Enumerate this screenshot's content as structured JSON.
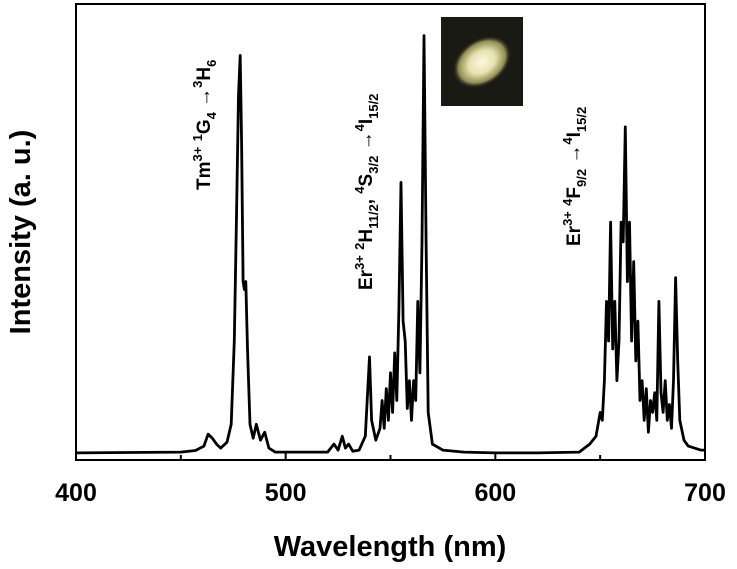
{
  "chart_data": {
    "type": "line",
    "title": "",
    "xlabel": "Wavelength (nm)",
    "ylabel": "Intensity (a. u.)",
    "xlim": [
      400,
      700
    ],
    "ylim": [
      0,
      1.15
    ],
    "grid": false,
    "x_ticks": [
      400,
      500,
      600,
      700
    ],
    "y_ticks": [],
    "series": [
      {
        "values": [
          [
            400,
            0.018
          ],
          [
            450,
            0.02
          ],
          [
            457,
            0.024
          ],
          [
            461,
            0.035
          ],
          [
            463,
            0.065
          ],
          [
            465,
            0.055
          ],
          [
            467,
            0.04
          ],
          [
            469,
            0.03
          ],
          [
            472,
            0.045
          ],
          [
            474,
            0.09
          ],
          [
            475.5,
            0.3
          ],
          [
            476.5,
            0.6
          ],
          [
            477.5,
            0.92
          ],
          [
            478.3,
            1.02
          ],
          [
            479,
            0.8
          ],
          [
            479.7,
            0.45
          ],
          [
            480.3,
            0.43
          ],
          [
            481,
            0.45
          ],
          [
            481.8,
            0.28
          ],
          [
            483,
            0.09
          ],
          [
            484.5,
            0.055
          ],
          [
            486,
            0.09
          ],
          [
            488,
            0.05
          ],
          [
            490,
            0.07
          ],
          [
            492,
            0.03
          ],
          [
            495,
            0.02
          ],
          [
            520,
            0.02
          ],
          [
            523,
            0.04
          ],
          [
            525,
            0.025
          ],
          [
            527,
            0.06
          ],
          [
            528.5,
            0.03
          ],
          [
            530,
            0.04
          ],
          [
            532,
            0.022
          ],
          [
            535,
            0.025
          ],
          [
            538,
            0.06
          ],
          [
            540,
            0.26
          ],
          [
            541,
            0.1
          ],
          [
            543,
            0.05
          ],
          [
            545,
            0.08
          ],
          [
            546,
            0.15
          ],
          [
            547,
            0.08
          ],
          [
            548,
            0.18
          ],
          [
            549,
            0.1
          ],
          [
            550,
            0.22
          ],
          [
            551,
            0.12
          ],
          [
            552,
            0.27
          ],
          [
            553,
            0.15
          ],
          [
            554,
            0.38
          ],
          [
            555,
            0.7
          ],
          [
            556,
            0.35
          ],
          [
            557,
            0.3
          ],
          [
            558,
            0.13
          ],
          [
            559,
            0.2
          ],
          [
            560,
            0.1
          ],
          [
            561,
            0.2
          ],
          [
            562,
            0.15
          ],
          [
            563,
            0.4
          ],
          [
            564,
            0.22
          ],
          [
            565,
            0.55
          ],
          [
            566,
            1.07
          ],
          [
            567,
            0.55
          ],
          [
            568,
            0.12
          ],
          [
            570,
            0.04
          ],
          [
            575,
            0.025
          ],
          [
            585,
            0.02
          ],
          [
            600,
            0.018
          ],
          [
            620,
            0.018
          ],
          [
            640,
            0.02
          ],
          [
            645,
            0.04
          ],
          [
            648,
            0.06
          ],
          [
            650,
            0.12
          ],
          [
            651,
            0.1
          ],
          [
            652,
            0.2
          ],
          [
            653,
            0.4
          ],
          [
            654,
            0.3
          ],
          [
            655,
            0.6
          ],
          [
            656,
            0.28
          ],
          [
            657,
            0.4
          ],
          [
            658,
            0.2
          ],
          [
            659,
            0.3
          ],
          [
            660,
            0.6
          ],
          [
            661,
            0.55
          ],
          [
            662,
            0.84
          ],
          [
            663,
            0.45
          ],
          [
            664,
            0.6
          ],
          [
            665,
            0.3
          ],
          [
            666,
            0.5
          ],
          [
            667,
            0.25
          ],
          [
            668,
            0.35
          ],
          [
            669,
            0.15
          ],
          [
            670,
            0.2
          ],
          [
            671,
            0.1
          ],
          [
            672,
            0.18
          ],
          [
            673,
            0.07
          ],
          [
            674,
            0.15
          ],
          [
            675,
            0.12
          ],
          [
            676,
            0.17
          ],
          [
            677,
            0.1
          ],
          [
            678,
            0.4
          ],
          [
            679,
            0.17
          ],
          [
            680,
            0.12
          ],
          [
            681,
            0.2
          ],
          [
            682,
            0.1
          ],
          [
            683,
            0.14
          ],
          [
            684,
            0.08
          ],
          [
            685,
            0.2
          ],
          [
            686,
            0.46
          ],
          [
            687,
            0.25
          ],
          [
            688,
            0.1
          ],
          [
            690,
            0.05
          ],
          [
            692,
            0.035
          ],
          [
            695,
            0.03
          ],
          [
            698,
            0.025
          ],
          [
            700,
            0.025
          ]
        ]
      }
    ],
    "annotations": [
      {
        "id": "tm",
        "ion": "Tm",
        "ion_sup": "3+",
        "transition_parts": [
          {
            "t": " ",
            "sup": ""
          },
          {
            "t": "G",
            "sup": "1",
            "sub": "4"
          },
          {
            "t": " →",
            "sup": ""
          },
          {
            "t": "H",
            "sup": "3",
            "sub": "6"
          }
        ],
        "full_text": "Tm3+ 1G4→3H6"
      },
      {
        "id": "er-green",
        "full_text": "Er3+ 2H11/2, 4S3/2→4I15/2"
      },
      {
        "id": "er-red",
        "full_text": "Er3+ 4F9/2→4I15/2"
      }
    ],
    "inset": {
      "description_colors": {
        "background": "#1a1a14",
        "glow_center": "#f4f0cc",
        "glow_edge": "#8a8a50"
      }
    }
  }
}
